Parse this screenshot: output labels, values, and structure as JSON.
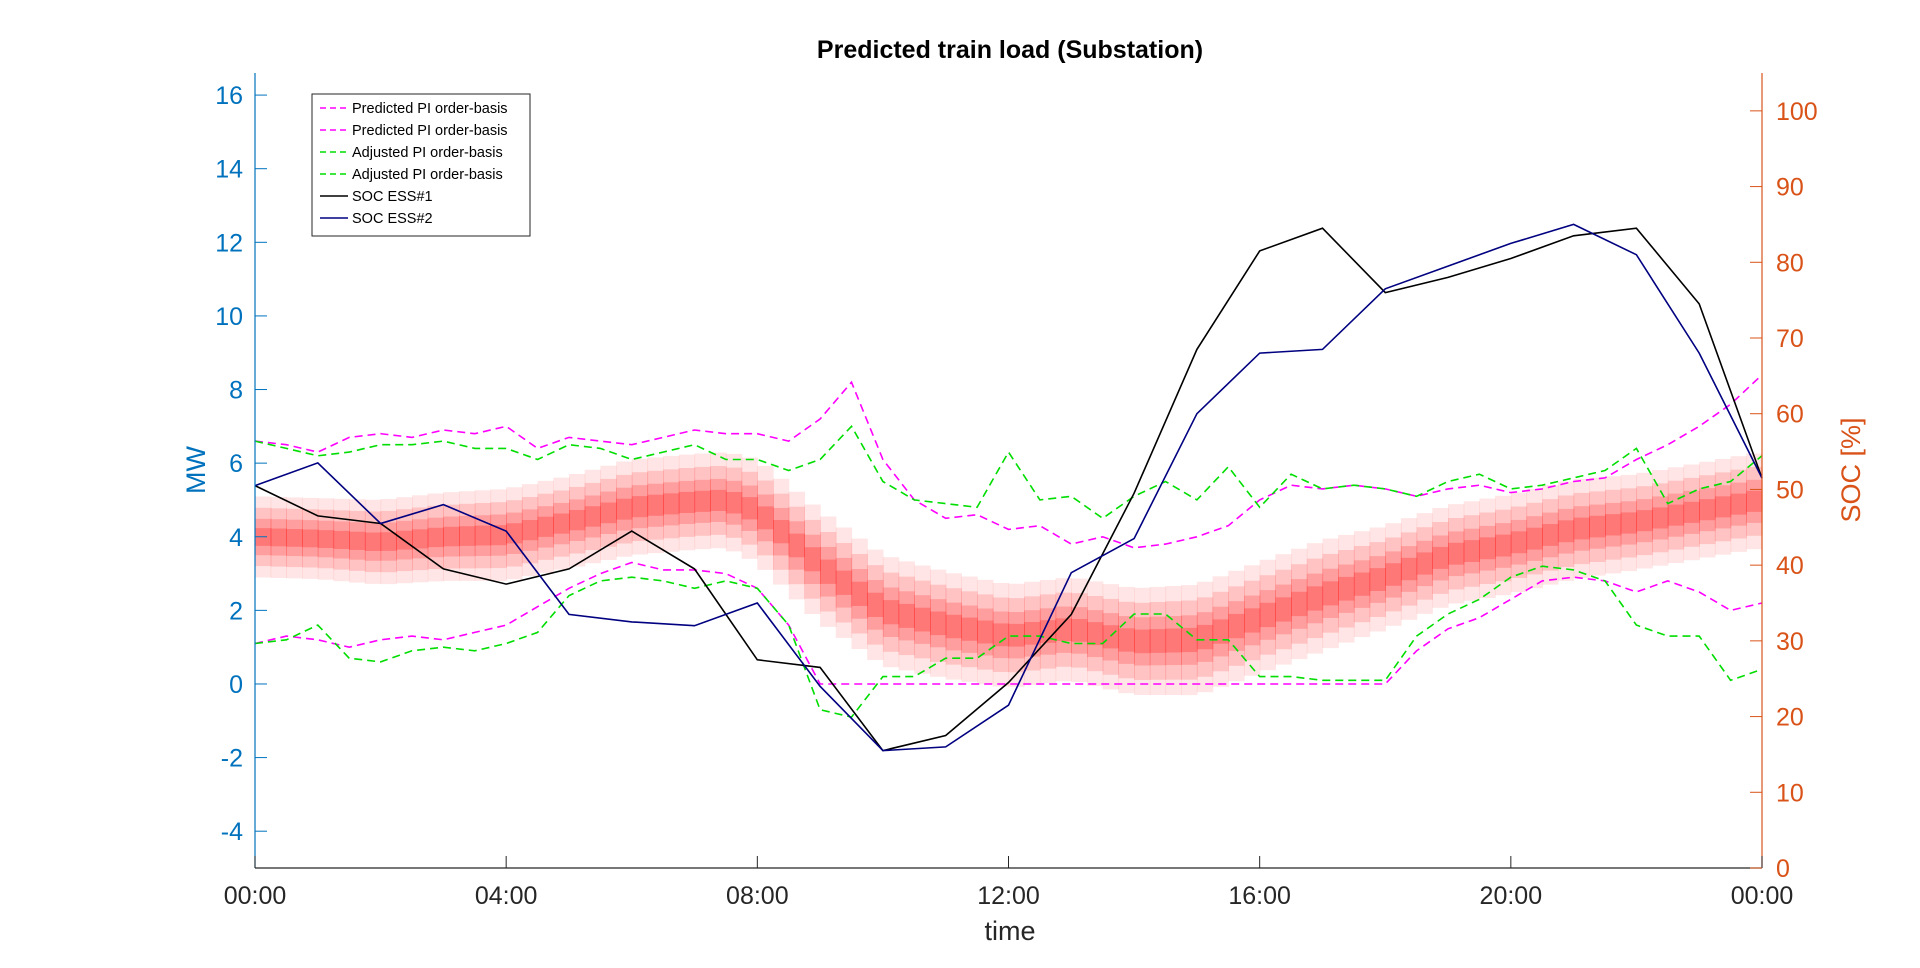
{
  "chart_data": {
    "type": "line",
    "title": "Predicted train load (Substation)",
    "xlabel": "time",
    "ylabel": "MW",
    "ylabel_right": "SOC [%]",
    "xlim_hours": [
      0,
      24
    ],
    "ylim": [
      -5,
      16.6
    ],
    "ylim_right": [
      0,
      105
    ],
    "x_ticks": [
      "00:00",
      "04:00",
      "08:00",
      "12:00",
      "16:00",
      "20:00",
      "00:00"
    ],
    "y_ticks": [
      -4,
      -2,
      0,
      2,
      4,
      6,
      8,
      10,
      12,
      14,
      16
    ],
    "y_ticks_right": [
      0,
      10,
      20,
      30,
      40,
      50,
      60,
      70,
      80,
      90,
      100
    ],
    "legend_position": "top-left",
    "colors": {
      "left_axis": "#0072BD",
      "right_axis": "#D95319",
      "predicted": "#FF00FF",
      "adjusted": "#00DD00",
      "soc1": "#000000",
      "soc2": "#000080",
      "band": "#FF0000"
    },
    "band": {
      "name": "predicted load distribution",
      "x": [
        0,
        1,
        2,
        3,
        4,
        5,
        6,
        7,
        7.5,
        8,
        9,
        10,
        11,
        12,
        13,
        14,
        15,
        16,
        17,
        18,
        19,
        20,
        21,
        22,
        23,
        24
      ],
      "center": [
        4.0,
        3.95,
        3.85,
        4.0,
        4.05,
        4.4,
        4.8,
        4.95,
        5.0,
        4.7,
        3.2,
        2.0,
        1.6,
        1.3,
        1.5,
        1.15,
        1.2,
        1.8,
        2.4,
        2.9,
        3.5,
        3.8,
        4.2,
        4.4,
        4.7,
        5.0
      ],
      "half_width": [
        1.1,
        1.1,
        1.15,
        1.2,
        1.25,
        1.25,
        1.3,
        1.3,
        1.3,
        1.4,
        1.5,
        1.5,
        1.45,
        1.4,
        1.4,
        1.45,
        1.5,
        1.5,
        1.5,
        1.4,
        1.35,
        1.35,
        1.35,
        1.3,
        1.3,
        1.3
      ]
    },
    "series": [
      {
        "name": "Predicted PI order-basis",
        "style": "dashed",
        "color": "#FF00FF",
        "axis": "left",
        "x": [
          0,
          0.5,
          1,
          1.5,
          2,
          2.5,
          3,
          3.5,
          4,
          4.5,
          5,
          5.5,
          6,
          6.5,
          7,
          7.5,
          8,
          8.5,
          9,
          9.5,
          10,
          10.5,
          11,
          11.5,
          12,
          12.5,
          13,
          13.5,
          14,
          14.5,
          15,
          15.5,
          16,
          16.5,
          17,
          17.5,
          18,
          18.5,
          19,
          19.5,
          20,
          20.5,
          21,
          21.5,
          22,
          22.5,
          23,
          23.5,
          24
        ],
        "values": [
          6.6,
          6.5,
          6.3,
          6.7,
          6.8,
          6.7,
          6.9,
          6.8,
          7.0,
          6.4,
          6.7,
          6.6,
          6.5,
          6.7,
          6.9,
          6.8,
          6.8,
          6.6,
          7.2,
          8.2,
          6.1,
          5.0,
          4.5,
          4.6,
          4.2,
          4.3,
          3.8,
          4.0,
          3.7,
          3.8,
          4.0,
          4.3,
          5.0,
          5.4,
          5.3,
          5.4,
          5.3,
          5.1,
          5.3,
          5.4,
          5.2,
          5.3,
          5.5,
          5.6,
          6.1,
          6.5,
          7.0,
          7.6,
          8.4
        ]
      },
      {
        "name": "Predicted PI order-basis",
        "style": "dashed",
        "color": "#FF00FF",
        "axis": "left",
        "x": [
          0,
          0.5,
          1,
          1.5,
          2,
          2.5,
          3,
          3.5,
          4,
          4.5,
          5,
          5.5,
          6,
          6.5,
          7,
          7.5,
          8,
          8.5,
          9,
          9.5,
          10,
          10.5,
          11,
          11.5,
          12,
          12.5,
          13,
          13.5,
          14,
          14.5,
          15,
          15.5,
          16,
          16.5,
          17,
          17.5,
          18,
          18.5,
          19,
          19.5,
          20,
          20.5,
          21,
          21.5,
          22,
          22.5,
          23,
          23.5,
          24
        ],
        "values": [
          1.1,
          1.3,
          1.2,
          1.0,
          1.2,
          1.3,
          1.2,
          1.4,
          1.6,
          2.1,
          2.6,
          3.0,
          3.3,
          3.1,
          3.1,
          3.0,
          2.6,
          1.6,
          0,
          0,
          0,
          0,
          0,
          0,
          0,
          0,
          0,
          0,
          0,
          0,
          0,
          0,
          0,
          0,
          0,
          0,
          0,
          0.9,
          1.5,
          1.8,
          2.3,
          2.8,
          2.9,
          2.8,
          2.5,
          2.8,
          2.5,
          2.0,
          2.2
        ]
      },
      {
        "name": "Adjusted PI order-basis",
        "style": "dashed",
        "color": "#00DD00",
        "axis": "left",
        "x": [
          0,
          0.5,
          1,
          1.5,
          2,
          2.5,
          3,
          3.5,
          4,
          4.5,
          5,
          5.5,
          6,
          6.5,
          7,
          7.5,
          8,
          8.5,
          9,
          9.5,
          10,
          10.5,
          11,
          11.5,
          12,
          12.5,
          13,
          13.5,
          14,
          14.5,
          15,
          15.5,
          16,
          16.5,
          17,
          17.5,
          18,
          18.5,
          19,
          19.5,
          20,
          20.5,
          21,
          21.5,
          22,
          22.5,
          23,
          23.5,
          24
        ],
        "values": [
          6.6,
          6.4,
          6.2,
          6.3,
          6.5,
          6.5,
          6.6,
          6.4,
          6.4,
          6.1,
          6.5,
          6.4,
          6.1,
          6.3,
          6.5,
          6.1,
          6.1,
          5.8,
          6.1,
          7.0,
          5.5,
          5.0,
          4.9,
          4.8,
          6.3,
          5.0,
          5.1,
          4.5,
          5.1,
          5.5,
          5.0,
          5.9,
          4.8,
          5.7,
          5.3,
          5.4,
          5.3,
          5.1,
          5.5,
          5.7,
          5.3,
          5.4,
          5.6,
          5.8,
          6.4,
          4.9,
          5.3,
          5.5,
          6.2
        ]
      },
      {
        "name": "Adjusted PI order-basis",
        "style": "dashed",
        "color": "#00DD00",
        "axis": "left",
        "x": [
          0,
          0.5,
          1,
          1.5,
          2,
          2.5,
          3,
          3.5,
          4,
          4.5,
          5,
          5.5,
          6,
          6.5,
          7,
          7.5,
          8,
          8.5,
          9,
          9.5,
          10,
          10.5,
          11,
          11.5,
          12,
          12.5,
          13,
          13.5,
          14,
          14.5,
          15,
          15.5,
          16,
          16.5,
          17,
          17.5,
          18,
          18.5,
          19,
          19.5,
          20,
          20.5,
          21,
          21.5,
          22,
          22.5,
          23,
          23.5,
          24
        ],
        "values": [
          1.1,
          1.2,
          1.6,
          0.7,
          0.6,
          0.9,
          1.0,
          0.9,
          1.1,
          1.4,
          2.4,
          2.8,
          2.9,
          2.8,
          2.6,
          2.8,
          2.6,
          1.6,
          -0.7,
          -0.9,
          0.2,
          0.2,
          0.7,
          0.7,
          1.3,
          1.3,
          1.1,
          1.1,
          1.9,
          1.9,
          1.2,
          1.2,
          0.2,
          0.2,
          0.1,
          0.1,
          0.1,
          1.3,
          1.9,
          2.3,
          2.9,
          3.2,
          3.1,
          2.8,
          1.6,
          1.3,
          1.3,
          0.1,
          0.4
        ]
      },
      {
        "name": "SOC ESS#1",
        "style": "solid",
        "color": "#000000",
        "axis": "right",
        "x": [
          0,
          1,
          2,
          3,
          4,
          5,
          6,
          7,
          8,
          9,
          10,
          11,
          12,
          13,
          14,
          15,
          16,
          17,
          18,
          19,
          20,
          21,
          22,
          23,
          24
        ],
        "values": [
          50.5,
          46.5,
          45.5,
          39.5,
          37.5,
          39.5,
          44.5,
          39.5,
          27.5,
          26.5,
          15.5,
          17.5,
          24.5,
          33.5,
          49.5,
          68.5,
          81.5,
          84.5,
          76.0,
          78.0,
          80.5,
          83.5,
          84.5,
          74.5,
          51.5
        ]
      },
      {
        "name": "SOC ESS#2",
        "style": "solid",
        "color": "#000080",
        "axis": "right",
        "x": [
          0,
          1,
          2,
          3,
          4,
          5,
          6,
          7,
          8,
          9,
          10,
          11,
          12,
          13,
          14,
          15,
          16,
          17,
          18,
          19,
          20,
          21,
          22,
          23,
          24
        ],
        "values": [
          50.5,
          53.5,
          45.5,
          48.0,
          44.5,
          33.5,
          32.5,
          32.0,
          35.0,
          24.0,
          15.5,
          16.0,
          21.5,
          39.0,
          43.5,
          60.0,
          68.0,
          68.5,
          76.5,
          79.5,
          82.5,
          85.0,
          81.0,
          68.0,
          51.5
        ]
      }
    ]
  }
}
